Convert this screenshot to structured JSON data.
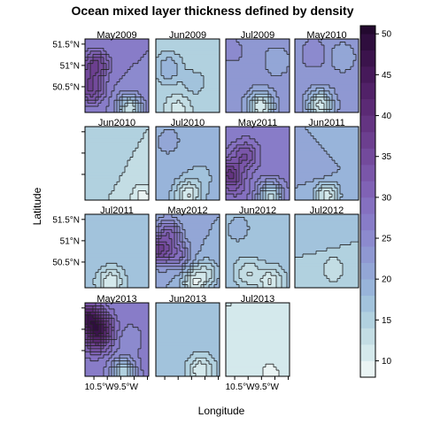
{
  "chart_data": {
    "type": "heatmap",
    "title": "Ocean mixed layer thickness defined by density",
    "xlabel": "Longitude",
    "ylabel": "Latitude",
    "x_tick_labels": [
      "10.5°W",
      "9.5°W"
    ],
    "y_tick_labels": [
      "51.5°N",
      "51°N",
      "50.5°N"
    ],
    "colorbar": {
      "range": [
        8,
        51
      ],
      "ticks": [
        10,
        15,
        20,
        25,
        30,
        35,
        40,
        45,
        50
      ],
      "levels": [
        8,
        10,
        12,
        14,
        16,
        18,
        20,
        22,
        24,
        26,
        28,
        30,
        32,
        34,
        36,
        38,
        40,
        42,
        44,
        46,
        48,
        50,
        51
      ],
      "colors": [
        "#eaf4f4",
        "#d4e9ec",
        "#c3dde4",
        "#b1d1df",
        "#a2c3dc",
        "#98b4da",
        "#93a6d6",
        "#8f98d2",
        "#8c8ace",
        "#887cc8",
        "#8570c0",
        "#8062b5",
        "#7a56a9",
        "#734a9c",
        "#6c3f8f",
        "#643482",
        "#5b2a75",
        "#512168",
        "#46195a",
        "#3b134c",
        "#2f0e3e",
        "#23092f"
      ]
    },
    "panels": [
      {
        "label": "May2009",
        "value": 26,
        "highs": [
          [
            0.0,
            0.5,
            30
          ],
          [
            0.18,
            0.35,
            36
          ],
          [
            0.1,
            0.7,
            35
          ],
          [
            0.7,
            0.95,
            12
          ]
        ]
      },
      {
        "label": "Jun2009",
        "value": 15,
        "highs": [
          [
            0.2,
            0.4,
            20
          ],
          [
            0.6,
            0.6,
            17
          ],
          [
            0.35,
            0.95,
            11
          ]
        ]
      },
      {
        "label": "Jul2009",
        "value": 23,
        "highs": [
          [
            0.1,
            0.15,
            25
          ],
          [
            0.8,
            0.3,
            20
          ],
          [
            0.55,
            0.92,
            10
          ]
        ]
      },
      {
        "label": "May2010",
        "value": 23,
        "highs": [
          [
            0.3,
            0.2,
            26
          ],
          [
            0.75,
            0.25,
            20
          ],
          [
            0.4,
            0.9,
            11
          ]
        ]
      },
      {
        "label": "Jun2010",
        "value": 14,
        "highs": [
          [
            0.2,
            0.5,
            16
          ],
          [
            0.9,
            0.95,
            9
          ]
        ]
      },
      {
        "label": "Jul2010",
        "value": 19,
        "highs": [
          [
            0.2,
            0.2,
            21
          ],
          [
            0.7,
            0.7,
            17
          ],
          [
            0.5,
            0.93,
            10
          ]
        ]
      },
      {
        "label": "May2011",
        "value": 27,
        "highs": [
          [
            0.05,
            0.65,
            38
          ],
          [
            0.3,
            0.4,
            34
          ],
          [
            0.2,
            0.85,
            30
          ],
          [
            0.7,
            0.95,
            13
          ]
        ]
      },
      {
        "label": "Jun2011",
        "value": 20,
        "highs": [
          [
            0.4,
            0.6,
            22
          ],
          [
            0.75,
            0.25,
            18
          ],
          [
            0.5,
            0.93,
            11
          ]
        ]
      },
      {
        "label": "Jul2011",
        "value": 17,
        "highs": [
          [
            0.1,
            0.6,
            18
          ],
          [
            0.6,
            0.2,
            16
          ],
          [
            0.4,
            0.92,
            10
          ]
        ]
      },
      {
        "label": "May2012",
        "value": 20,
        "highs": [
          [
            0.05,
            0.5,
            35
          ],
          [
            0.2,
            0.25,
            30
          ],
          [
            0.35,
            0.55,
            28
          ],
          [
            0.8,
            0.8,
            14
          ],
          [
            0.6,
            0.93,
            11
          ]
        ]
      },
      {
        "label": "Jun2012",
        "value": 17,
        "highs": [
          [
            0.2,
            0.2,
            19
          ],
          [
            0.35,
            0.8,
            12
          ],
          [
            0.7,
            0.92,
            10
          ]
        ]
      },
      {
        "label": "Jul2012",
        "value": 16,
        "highs": [
          [
            0.5,
            0.3,
            17
          ],
          [
            0.6,
            0.75,
            12
          ]
        ]
      },
      {
        "label": "May2013",
        "value": 27,
        "highs": [
          [
            0.05,
            0.2,
            44
          ],
          [
            0.25,
            0.35,
            40
          ],
          [
            0.15,
            0.5,
            36
          ],
          [
            0.7,
            0.5,
            24
          ],
          [
            0.6,
            0.95,
            14
          ]
        ]
      },
      {
        "label": "Jun2013",
        "value": 17,
        "highs": [
          [
            0.3,
            0.3,
            18
          ],
          [
            0.7,
            0.92,
            10
          ]
        ]
      },
      {
        "label": "Jul2013",
        "value": 12,
        "highs": [
          [
            0.7,
            0.95,
            9
          ]
        ]
      }
    ]
  }
}
